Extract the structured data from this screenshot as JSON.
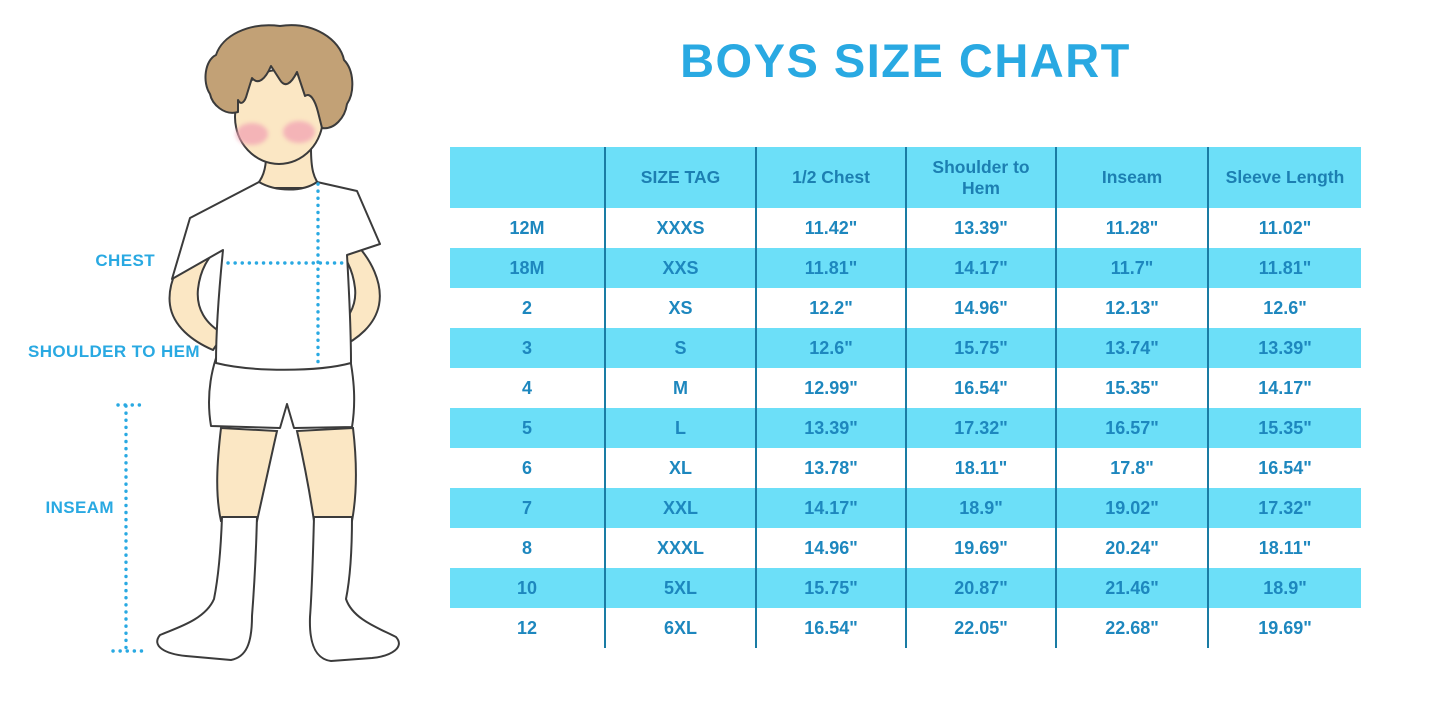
{
  "title": "BOYS SIZE CHART",
  "figure": {
    "labels": {
      "chest": "CHEST",
      "shoulder_to_hem": "SHOULDER TO HEM",
      "inseam": "INSEAM"
    }
  },
  "colors": {
    "accent_blue": "#29A9E2",
    "table_text_blue": "#1D87BE",
    "row_stripe_cyan": "#6CDFF8",
    "column_divider_blue": "#1A7CA4",
    "skin_tone": "#FBE7C4",
    "hair_brown": "#C2A176",
    "blush_pink": "#F2A3B3"
  },
  "chart_data": {
    "type": "table",
    "title": "BOYS SIZE CHART",
    "columns": [
      "",
      "SIZE TAG",
      "1/2 Chest",
      "Shoulder to Hem",
      "Inseam",
      "Sleeve Length"
    ],
    "rows": [
      [
        "12M",
        "XXXS",
        "11.42\"",
        "13.39\"",
        "11.28\"",
        "11.02\""
      ],
      [
        "18M",
        "XXS",
        "11.81\"",
        "14.17\"",
        "11.7\"",
        "11.81\""
      ],
      [
        "2",
        "XS",
        "12.2\"",
        "14.96\"",
        "12.13\"",
        "12.6\""
      ],
      [
        "3",
        "S",
        "12.6\"",
        "15.75\"",
        "13.74\"",
        "13.39\""
      ],
      [
        "4",
        "M",
        "12.99\"",
        "16.54\"",
        "15.35\"",
        "14.17\""
      ],
      [
        "5",
        "L",
        "13.39\"",
        "17.32\"",
        "16.57\"",
        "15.35\""
      ],
      [
        "6",
        "XL",
        "13.78\"",
        "18.11\"",
        "17.8\"",
        "16.54\""
      ],
      [
        "7",
        "XXL",
        "14.17\"",
        "18.9\"",
        "19.02\"",
        "17.32\""
      ],
      [
        "8",
        "XXXL",
        "14.96\"",
        "19.69\"",
        "20.24\"",
        "18.11\""
      ],
      [
        "10",
        "5XL",
        "15.75\"",
        "20.87\"",
        "21.46\"",
        "18.9\""
      ],
      [
        "12",
        "6XL",
        "16.54\"",
        "22.05\"",
        "22.68\"",
        "19.69\""
      ]
    ],
    "layout": {
      "header_background": "#6CDFF8",
      "stripe_pattern": "header cyan, data rows alternate white/cyan starting with white",
      "column_dividers": true,
      "outer_border": false
    }
  }
}
